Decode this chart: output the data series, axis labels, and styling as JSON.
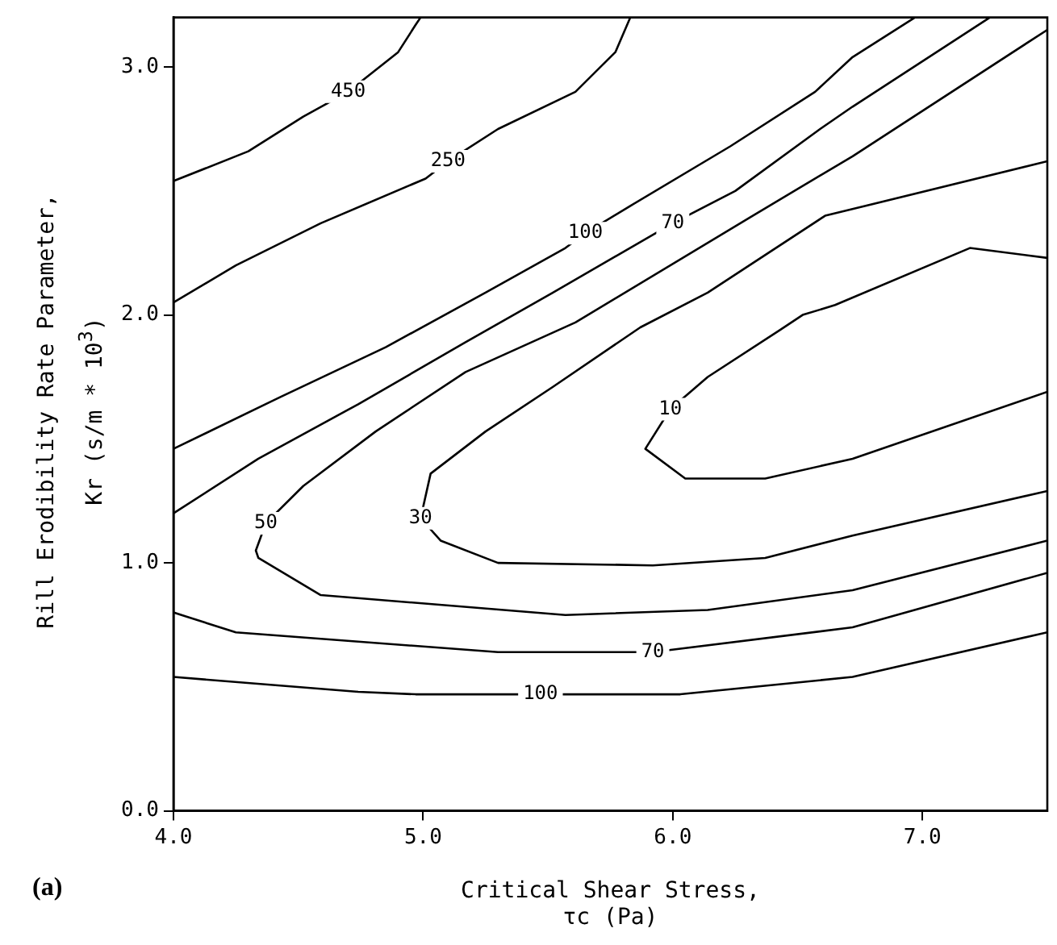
{
  "chart_data": {
    "type": "line",
    "xlabel": "Critical Shear Stress,\nτc (Pa)",
    "ylabel": "Rill Erodibility Rate Parameter,\nKr (s/m * 10$^{3}$)",
    "annotations": [
      "(a)"
    ],
    "xlim": [
      4,
      7.5
    ],
    "ylim": [
      0,
      3.2
    ],
    "xticks": [
      {
        "value": 4,
        "label": "4.0"
      },
      {
        "value": 5,
        "label": "5.0"
      },
      {
        "value": 6,
        "label": "6.0"
      },
      {
        "value": 7,
        "label": "7.0"
      }
    ],
    "yticks": [
      {
        "value": 0,
        "label": "0.0"
      },
      {
        "value": 1,
        "label": "1.0"
      },
      {
        "value": 2,
        "label": "2.0"
      },
      {
        "value": 3,
        "label": "3.0"
      }
    ],
    "grid": false,
    "legend": false,
    "marker": "none",
    "line_style": "solid",
    "series": [
      {
        "name": "450",
        "color": "#000000",
        "x": [
          4.0,
          4.3,
          4.52,
          4.7,
          4.9,
          4.97,
          4.99
        ],
        "values": [
          2.54,
          2.66,
          2.8,
          2.9,
          3.06,
          3.17,
          3.2
        ]
      },
      {
        "name": "250",
        "color": "#000000",
        "x": [
          4.0,
          4.25,
          4.59,
          5.01,
          5.1,
          5.3,
          5.61,
          5.77,
          5.83
        ],
        "values": [
          2.05,
          2.2,
          2.37,
          2.55,
          2.62,
          2.75,
          2.9,
          3.06,
          3.2
        ]
      },
      {
        "name": "100",
        "color": "#000000",
        "x": [
          4.0,
          4.43,
          4.85,
          5.25,
          5.57,
          5.65,
          5.83,
          6.23,
          6.57,
          6.72,
          6.97
        ],
        "values": [
          1.46,
          1.67,
          1.87,
          2.09,
          2.27,
          2.33,
          2.44,
          2.68,
          2.9,
          3.04,
          3.2
        ]
      },
      {
        "name": "70",
        "color": "#000000",
        "x": [
          4.0,
          4.34,
          4.74,
          5.17,
          5.52,
          6.0,
          6.25,
          6.59,
          6.72,
          7.27
        ],
        "values": [
          1.2,
          1.42,
          1.64,
          1.89,
          2.09,
          2.37,
          2.5,
          2.75,
          2.84,
          3.2
        ]
      },
      {
        "name": "50",
        "color": "#000000",
        "x": [
          7.5,
          6.72,
          6.32,
          5.61,
          5.17,
          4.81,
          4.52,
          4.37,
          4.33,
          4.34,
          4.59,
          5.57,
          6.14,
          6.72,
          7.5
        ],
        "values": [
          3.15,
          2.64,
          2.4,
          1.97,
          1.77,
          1.53,
          1.31,
          1.16,
          1.05,
          1.02,
          0.87,
          0.79,
          0.81,
          0.89,
          1.09
        ]
      },
      {
        "name": "30",
        "color": "#000000",
        "x": [
          7.5,
          6.61,
          6.14,
          5.87,
          5.52,
          5.25,
          5.03,
          4.99,
          5.07,
          5.3,
          5.92,
          6.37,
          6.72,
          7.5
        ],
        "values": [
          2.62,
          2.4,
          2.09,
          1.95,
          1.71,
          1.53,
          1.36,
          1.18,
          1.09,
          1.0,
          0.99,
          1.02,
          1.11,
          1.29
        ]
      },
      {
        "name": "10",
        "color": "#000000",
        "x": [
          7.5,
          7.19,
          6.65,
          6.52,
          6.43,
          6.14,
          5.99,
          5.89,
          6.05,
          6.37,
          6.72,
          7.5
        ],
        "values": [
          2.23,
          2.27,
          2.04,
          2.0,
          1.94,
          1.75,
          1.62,
          1.46,
          1.34,
          1.34,
          1.42,
          1.69
        ]
      },
      {
        "name": "70",
        "color": "#000000",
        "x": [
          4.0,
          4.25,
          5.3,
          5.92,
          6.72,
          7.5
        ],
        "values": [
          0.8,
          0.72,
          0.64,
          0.64,
          0.74,
          0.96
        ]
      },
      {
        "name": "100",
        "color": "#000000",
        "x": [
          4.0,
          4.74,
          4.97,
          5.47,
          6.03,
          6.72,
          7.5
        ],
        "values": [
          0.54,
          0.48,
          0.47,
          0.47,
          0.47,
          0.54,
          0.72
        ]
      }
    ]
  }
}
